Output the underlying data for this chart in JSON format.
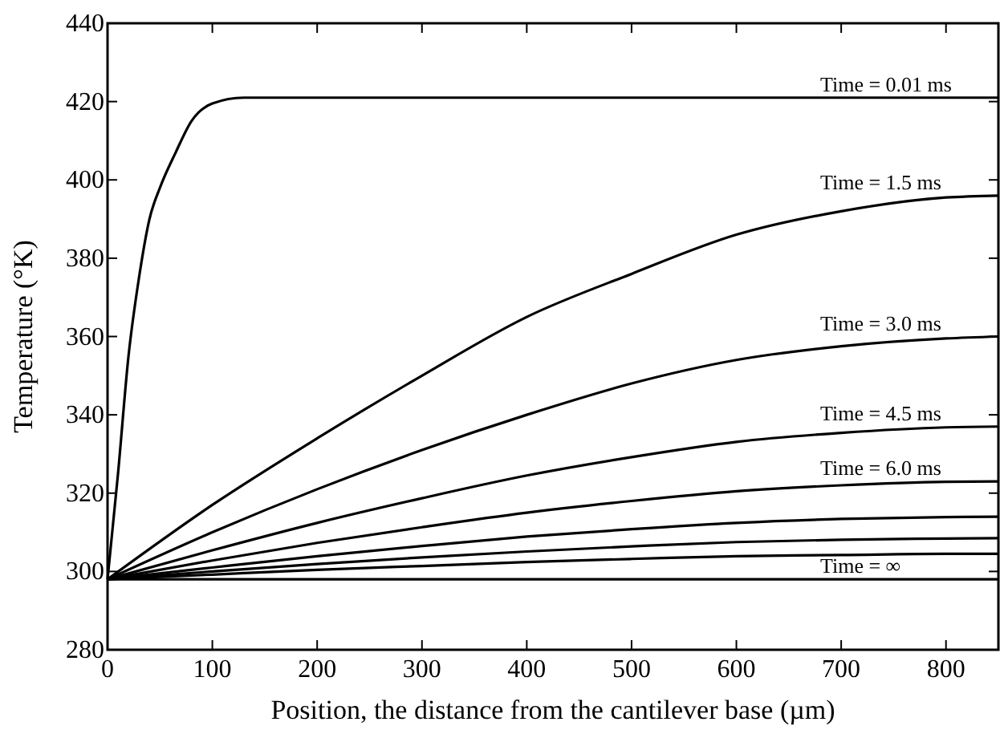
{
  "chart_data": {
    "type": "line",
    "xlabel": "Position, the distance from the cantilever base (µm)",
    "ylabel": "Temperature (°K)",
    "xlim": [
      0,
      850
    ],
    "xticks": [
      0,
      100,
      200,
      300,
      400,
      500,
      600,
      700,
      800
    ],
    "ylim": [
      280,
      440
    ],
    "yticks": [
      280,
      300,
      320,
      340,
      360,
      380,
      400,
      420,
      440
    ],
    "grid": false,
    "legend": "right",
    "marker": "none",
    "line_style": "solid",
    "series": [
      {
        "name": "Time = 0.01 ms",
        "color": "#000000",
        "x": [
          0,
          10,
          20,
          30,
          40,
          50,
          65,
          80,
          100,
          130,
          850
        ],
        "values": [
          298,
          325,
          355,
          375,
          390,
          398,
          407,
          415,
          419.5,
          421,
          421
        ]
      },
      {
        "name": "Time = 1.5 ms",
        "color": "#000000",
        "x": [
          0,
          100,
          200,
          300,
          400,
          500,
          600,
          700,
          800,
          850
        ],
        "values": [
          298,
          317,
          334,
          350,
          365,
          376,
          386,
          392,
          395.5,
          396
        ]
      },
      {
        "name": "Time = 3.0 ms",
        "color": "#000000",
        "x": [
          0,
          100,
          200,
          300,
          400,
          500,
          600,
          700,
          800,
          850
        ],
        "values": [
          298,
          310,
          321,
          331,
          340,
          348,
          354,
          357.5,
          359.5,
          360
        ]
      },
      {
        "name": "Time = 4.5 ms",
        "color": "#000000",
        "x": [
          0,
          100,
          200,
          300,
          400,
          500,
          600,
          700,
          800,
          850
        ],
        "values": [
          298,
          305.4,
          312.4,
          318.7,
          324.5,
          329.2,
          333.1,
          335.4,
          336.8,
          337
        ]
      },
      {
        "name": "Time = 6.0 ms",
        "color": "#000000",
        "x": [
          0,
          100,
          200,
          300,
          400,
          500,
          600,
          700,
          800,
          850
        ],
        "values": [
          298,
          302.8,
          307.3,
          311.3,
          315,
          318,
          320.5,
          322,
          322.9,
          323
        ]
      },
      {
        "color": "#000000",
        "x": [
          0,
          100,
          200,
          300,
          400,
          500,
          600,
          700,
          800,
          850
        ],
        "values": [
          298,
          301,
          303.9,
          306.5,
          308.9,
          310.8,
          312.4,
          313.4,
          313.9,
          314
        ]
      },
      {
        "color": "#000000",
        "x": [
          0,
          100,
          200,
          300,
          400,
          500,
          600,
          700,
          800,
          850
        ],
        "values": [
          298,
          300,
          301.9,
          303.6,
          305.1,
          306.4,
          307.5,
          308.1,
          308.4,
          308.5
        ]
      },
      {
        "color": "#000000",
        "x": [
          0,
          100,
          200,
          300,
          400,
          500,
          600,
          700,
          800,
          850
        ],
        "values": [
          298,
          299.2,
          300.4,
          301.4,
          302.4,
          303.2,
          303.9,
          304.2,
          304.5,
          304.5
        ]
      },
      {
        "name": "Time = ∞",
        "color": "#000000",
        "x": [
          0,
          850
        ],
        "values": [
          298,
          298
        ]
      }
    ]
  }
}
